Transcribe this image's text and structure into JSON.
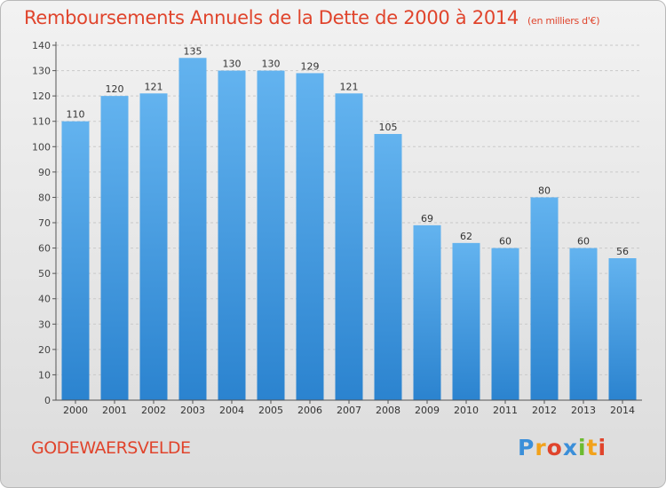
{
  "header": {
    "title": "Remboursements Annuels de la Dette de 2000 à 2014",
    "unit": "(en milliers d'€)"
  },
  "footer": {
    "commune": "GODEWAERSVELDE",
    "logo_text": "Proxiti",
    "logo_letters": [
      "P",
      "r",
      "o",
      "x",
      "i",
      "t",
      "i"
    ],
    "logo_colors": [
      "#3b8fd9",
      "#f2a21b",
      "#e0442c",
      "#3b8fd9",
      "#6cbb2f",
      "#f2a21b",
      "#e0442c"
    ]
  },
  "colors": {
    "bar_light": "#63b3ef",
    "bar_dark": "#2b83cf",
    "accent": "#e0442c"
  },
  "chart_data": {
    "type": "bar",
    "title": "Remboursements Annuels de la Dette de 2000 à 2014",
    "subtitle": "(en milliers d'€)",
    "xlabel": "",
    "ylabel": "",
    "categories": [
      "2000",
      "2001",
      "2002",
      "2003",
      "2004",
      "2005",
      "2006",
      "2007",
      "2008",
      "2009",
      "2010",
      "2011",
      "2012",
      "2013",
      "2014"
    ],
    "values": [
      110,
      120,
      121,
      135,
      130,
      130,
      129,
      121,
      105,
      69,
      62,
      60,
      80,
      60,
      56
    ],
    "ylim": [
      0,
      140
    ],
    "yticks": [
      0,
      10,
      20,
      30,
      40,
      50,
      60,
      70,
      80,
      90,
      100,
      110,
      120,
      130,
      140
    ],
    "grid": true
  }
}
